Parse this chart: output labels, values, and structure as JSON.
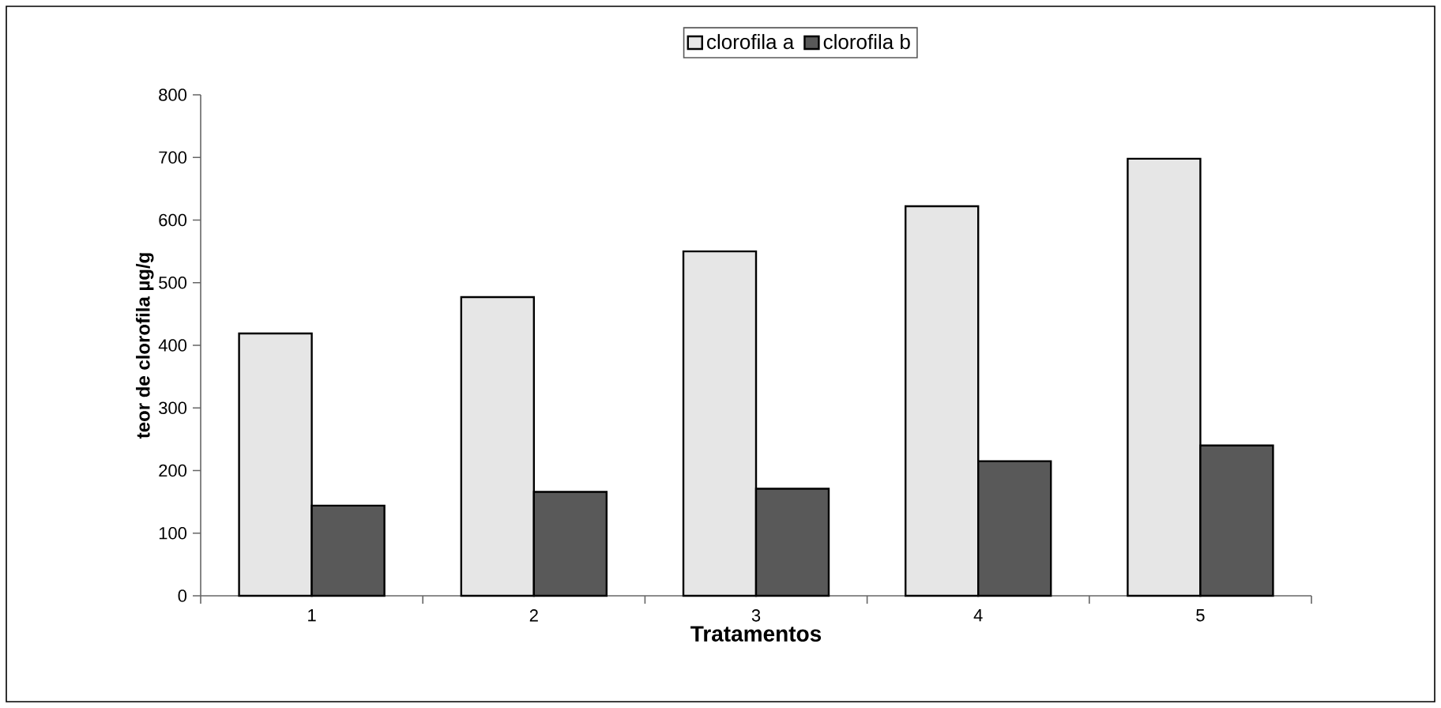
{
  "chart_data": {
    "type": "bar",
    "xlabel": "Tratamentos",
    "ylabel": "teor de clorofila µg/g",
    "categories": [
      "1",
      "2",
      "3",
      "4",
      "5"
    ],
    "series": [
      {
        "name": "clorofila a",
        "color": "#e6e6e6",
        "values": [
          419,
          477,
          550,
          622,
          698
        ]
      },
      {
        "name": "clorofila b",
        "color": "#595959",
        "values": [
          144,
          166,
          171,
          215,
          240
        ]
      }
    ],
    "ylim": [
      0,
      800
    ],
    "yticks": [
      0,
      100,
      200,
      300,
      400,
      500,
      600,
      700,
      800
    ],
    "grid": false,
    "legend": "top"
  }
}
